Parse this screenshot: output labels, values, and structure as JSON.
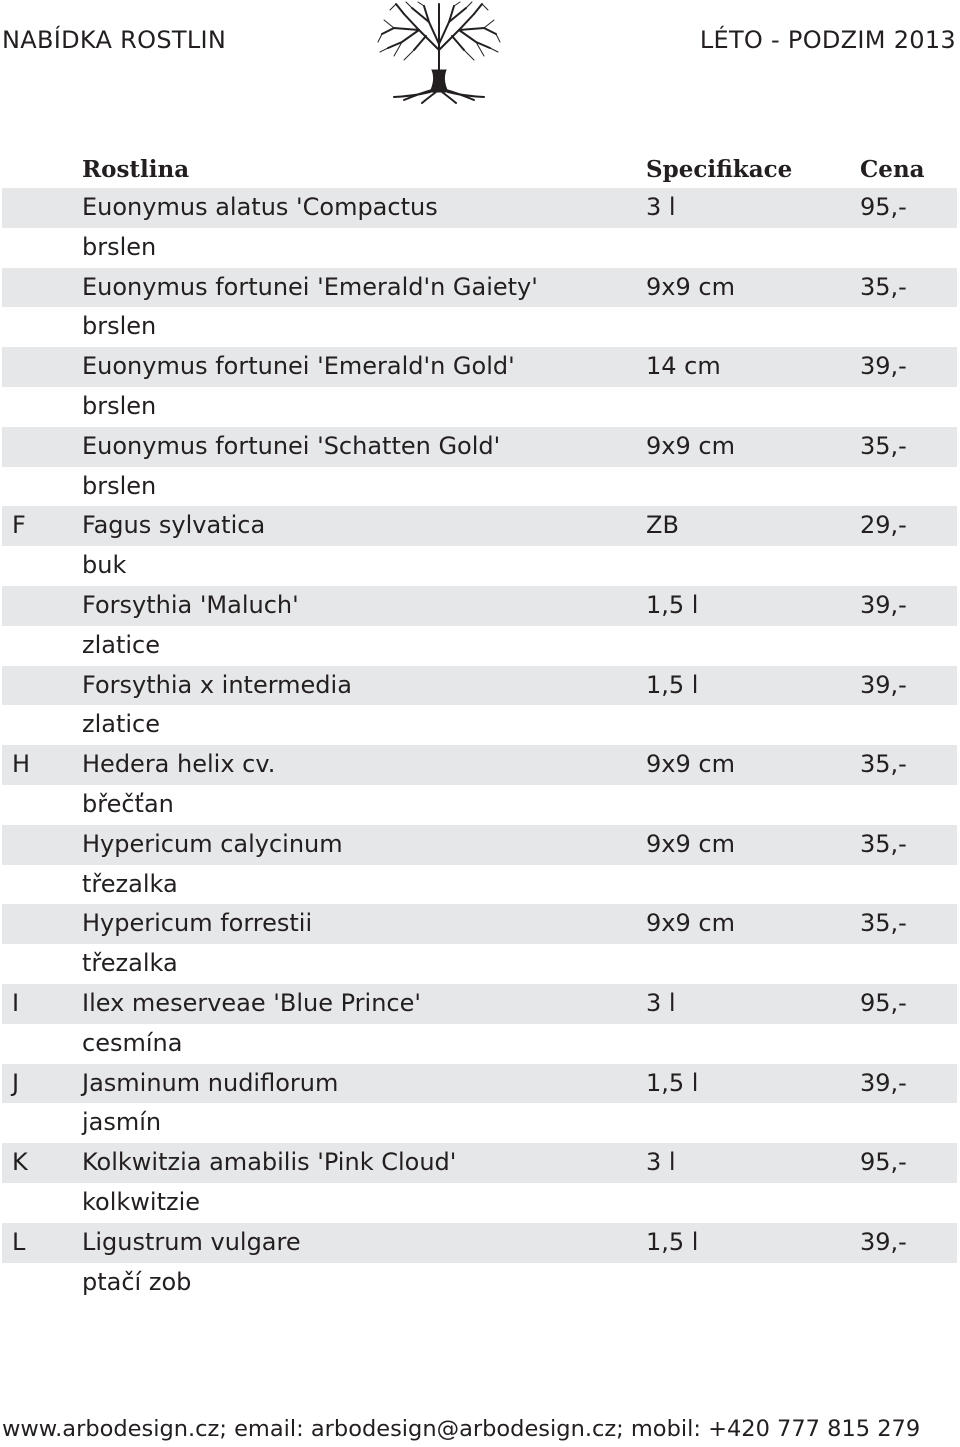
{
  "header": {
    "left_title": "NABÍDKA ROSTLIN",
    "right_title": "LÉTO - PODZIM 2013"
  },
  "logo": {
    "icon": "tree-icon"
  },
  "table": {
    "columns": {
      "name": "Rostlina",
      "spec": "Specifikace",
      "price": "Cena"
    },
    "items": [
      {
        "letter": "",
        "name": "Euonymus alatus 'Compactus",
        "common": "brslen",
        "spec": "3 l",
        "price": "95,-"
      },
      {
        "letter": "",
        "name": "Euonymus fortunei 'Emerald'n Gaiety'",
        "common": "brslen",
        "spec": "9x9 cm",
        "price": "35,-"
      },
      {
        "letter": "",
        "name": "Euonymus fortunei 'Emerald'n Gold'",
        "common": "brslen",
        "spec": "14 cm",
        "price": "39,-"
      },
      {
        "letter": "",
        "name": "Euonymus fortunei 'Schatten Gold'",
        "common": "brslen",
        "spec": "9x9 cm",
        "price": "35,-"
      },
      {
        "letter": "F",
        "name": "Fagus sylvatica",
        "common": "buk",
        "spec": "ZB",
        "price": "29,-"
      },
      {
        "letter": "",
        "name": "Forsythia 'Maluch'",
        "common": "zlatice",
        "spec": "1,5 l",
        "price": "39,-"
      },
      {
        "letter": "",
        "name": "Forsythia x intermedia",
        "common": "zlatice",
        "spec": "1,5 l",
        "price": "39,-"
      },
      {
        "letter": "H",
        "name": "Hedera helix cv.",
        "common": "břečťan",
        "spec": "9x9 cm",
        "price": "35,-"
      },
      {
        "letter": "",
        "name": "Hypericum calycinum",
        "common": "třezalka",
        "spec": "9x9 cm",
        "price": "35,-"
      },
      {
        "letter": "",
        "name": "Hypericum forrestii",
        "common": "třezalka",
        "spec": "9x9 cm",
        "price": "35,-"
      },
      {
        "letter": "I",
        "name": "Ilex meserveae 'Blue Prince'",
        "common": "cesmína",
        "spec": "3 l",
        "price": "95,-"
      },
      {
        "letter": "J",
        "name": "Jasminum nudiflorum",
        "common": "jasmín",
        "spec": "1,5 l",
        "price": "39,-"
      },
      {
        "letter": "K",
        "name": "Kolkwitzia amabilis 'Pink Cloud'",
        "common": "kolkwitzie",
        "spec": "3 l",
        "price": "95,-"
      },
      {
        "letter": "L",
        "name": "Ligustrum vulgare",
        "common": "ptačí zob",
        "spec": "1,5 l",
        "price": "39,-"
      }
    ]
  },
  "footer": {
    "text": "www.arbodesign.cz;   email: arbodesign@arbodesign.cz;   mobil: +420 777 815 279"
  }
}
